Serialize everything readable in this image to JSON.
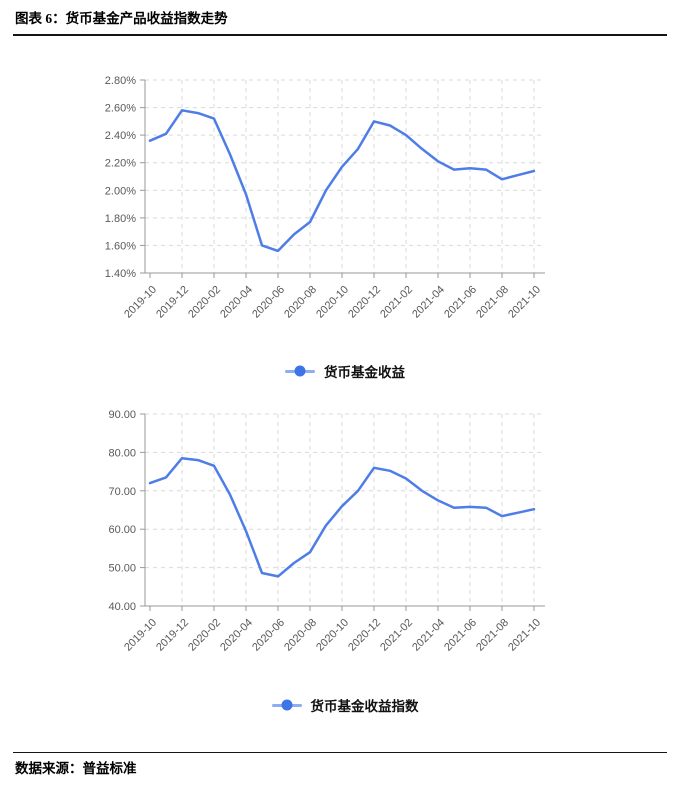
{
  "header": {
    "title": "图表 6：货币基金产品收益指数走势"
  },
  "footer": {
    "label": "数据来源：",
    "source": "普益标准"
  },
  "colors": {
    "line": "#4F7DE8",
    "legend_dot": "#3D74E6",
    "legend_line": "#8FADF2",
    "grid": "#D9D9D9",
    "axis": "#999999",
    "tick_text": "#595959",
    "rule": "#151515"
  },
  "chart_data": [
    {
      "type": "line",
      "title": "",
      "legend": "货币基金收益",
      "legend_position": "bottom",
      "grid": true,
      "x": [
        "2019-10",
        "2019-11",
        "2019-12",
        "2020-01",
        "2020-02",
        "2020-03",
        "2020-04",
        "2020-05",
        "2020-06",
        "2020-07",
        "2020-08",
        "2020-09",
        "2020-10",
        "2020-11",
        "2020-12",
        "2021-01",
        "2021-02",
        "2021-03",
        "2021-04",
        "2021-05",
        "2021-06",
        "2021-07",
        "2021-08",
        "2021-09",
        "2021-10"
      ],
      "x_tick_labels": [
        "2019-10",
        "2019-12",
        "2020-02",
        "2020-04",
        "2020-06",
        "2020-08",
        "2020-10",
        "2020-12",
        "2021-02",
        "2021-04",
        "2021-06",
        "2021-08",
        "2021-10"
      ],
      "values": [
        2.36,
        2.41,
        2.58,
        2.56,
        2.52,
        2.26,
        1.97,
        1.6,
        1.56,
        1.68,
        1.77,
        2.0,
        2.17,
        2.3,
        2.5,
        2.47,
        2.4,
        2.3,
        2.21,
        2.15,
        2.16,
        2.15,
        2.08,
        2.11,
        2.14
      ],
      "ylim": [
        1.4,
        2.8
      ],
      "y_step": 0.2,
      "y_tick_labels": [
        "2.80%",
        "2.60%",
        "2.40%",
        "2.20%",
        "2.00%",
        "1.80%",
        "1.60%",
        "1.40%"
      ],
      "xlabel": "",
      "ylabel": ""
    },
    {
      "type": "line",
      "title": "",
      "legend": "货币基金收益指数",
      "legend_position": "bottom",
      "grid": true,
      "x": [
        "2019-10",
        "2019-11",
        "2019-12",
        "2020-01",
        "2020-02",
        "2020-03",
        "2020-04",
        "2020-05",
        "2020-06",
        "2020-07",
        "2020-08",
        "2020-09",
        "2020-10",
        "2020-11",
        "2020-12",
        "2021-01",
        "2021-02",
        "2021-03",
        "2021-04",
        "2021-05",
        "2021-06",
        "2021-07",
        "2021-08",
        "2021-09",
        "2021-10"
      ],
      "x_tick_labels": [
        "2019-10",
        "2019-12",
        "2020-02",
        "2020-04",
        "2020-06",
        "2020-08",
        "2020-10",
        "2020-12",
        "2021-02",
        "2021-04",
        "2021-06",
        "2021-08",
        "2021-10"
      ],
      "values": [
        72.0,
        73.5,
        78.5,
        78.0,
        76.5,
        69.0,
        59.5,
        48.6,
        47.7,
        51.2,
        54.0,
        61.0,
        66.0,
        70.0,
        76.0,
        75.2,
        73.2,
        70.0,
        67.5,
        65.6,
        65.8,
        65.6,
        63.4,
        64.3,
        65.2
      ],
      "ylim": [
        40,
        90
      ],
      "y_step": 10,
      "y_tick_labels": [
        "90.00",
        "80.00",
        "70.00",
        "60.00",
        "50.00",
        "40.00"
      ],
      "xlabel": "",
      "ylabel": ""
    }
  ]
}
